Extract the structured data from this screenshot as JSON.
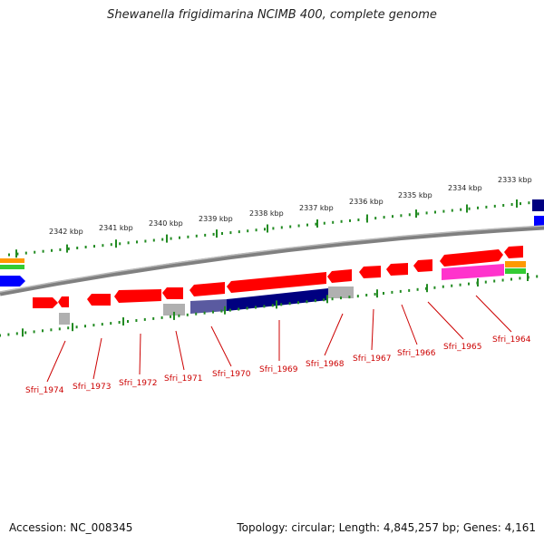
{
  "title": "Shewanella frigidimarina NCIMB 400, complete genome",
  "footer": {
    "accession": "Accession: NC_008345",
    "topology": "Topology: circular; Length: 4,845,257 bp; Genes: 4,161"
  },
  "scale_labels": [
    "2342 kbp",
    "2341 kbp",
    "2340 kbp",
    "2339 kbp",
    "2338 kbp",
    "2337 kbp",
    "2336 kbp",
    "2335 kbp",
    "2334 kbp",
    "2333 kbp"
  ],
  "gene_labels": [
    "Sfri_1974",
    "Sfri_1973",
    "Sfri_1972",
    "Sfri_1971",
    "Sfri_1970",
    "Sfri_1969",
    "Sfri_1968",
    "Sfri_1967",
    "Sfri_1966",
    "Sfri_1965",
    "Sfri_1964"
  ],
  "colors": {
    "gene": "#ff0000",
    "label": "#cc0000",
    "tick": "#228b22",
    "backbone": "#808080",
    "blast_dark": "#000080",
    "blast_light": "#5a5aa0",
    "blast_gray": "#b0b0b0",
    "magenta": "#ff33cc",
    "orange": "#ff9900",
    "green": "#33cc33",
    "blue": "#0000ff"
  }
}
